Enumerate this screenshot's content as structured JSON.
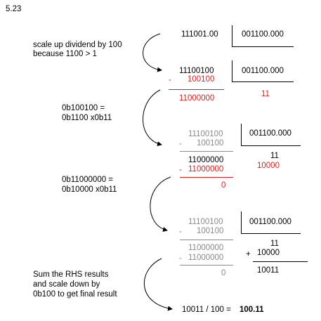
{
  "problem_number": "5.23",
  "notes": {
    "scale_up": "scale up dividend by 100\nbecause 1100 > 1",
    "step1": "0b100100 =\n0b1100 x0b11",
    "step2": "0b11000000 =\n0b10000 x0b11",
    "final": "Sum the RHS results\nand scale down by\n0b100 to get final result"
  },
  "block0": {
    "dividend": "111001.00",
    "divisor": "001100.000"
  },
  "block1": {
    "dividend": "11100100",
    "divisor": "001100.000",
    "minus": "-",
    "subtract": "100100",
    "remainder": "11000000",
    "quotient": "11"
  },
  "block2": {
    "dividend": "11100100",
    "divisor": "001100.000",
    "minus1": "-",
    "subtract1": "100100",
    "remainder1": "11000000",
    "minus2": "-",
    "subtract2": "11000000",
    "remainder2": "0",
    "quotient1": "11",
    "quotient2": "10000"
  },
  "block3": {
    "dividend": "11100100",
    "divisor": "001100.000",
    "minus1": "-",
    "subtract1": "100100",
    "remainder1": "11000000",
    "minus2": "-",
    "subtract2": "11000000",
    "remainder2": "0",
    "quotient1": "11",
    "plus": "+",
    "quotient2": "10000",
    "sum": "10011"
  },
  "result": {
    "expression": "10011 / 100 = ",
    "value": "100.11"
  },
  "colors": {
    "text": "#000000",
    "highlight_red": "#d62020",
    "faded_gray": "#8a8a8a"
  }
}
